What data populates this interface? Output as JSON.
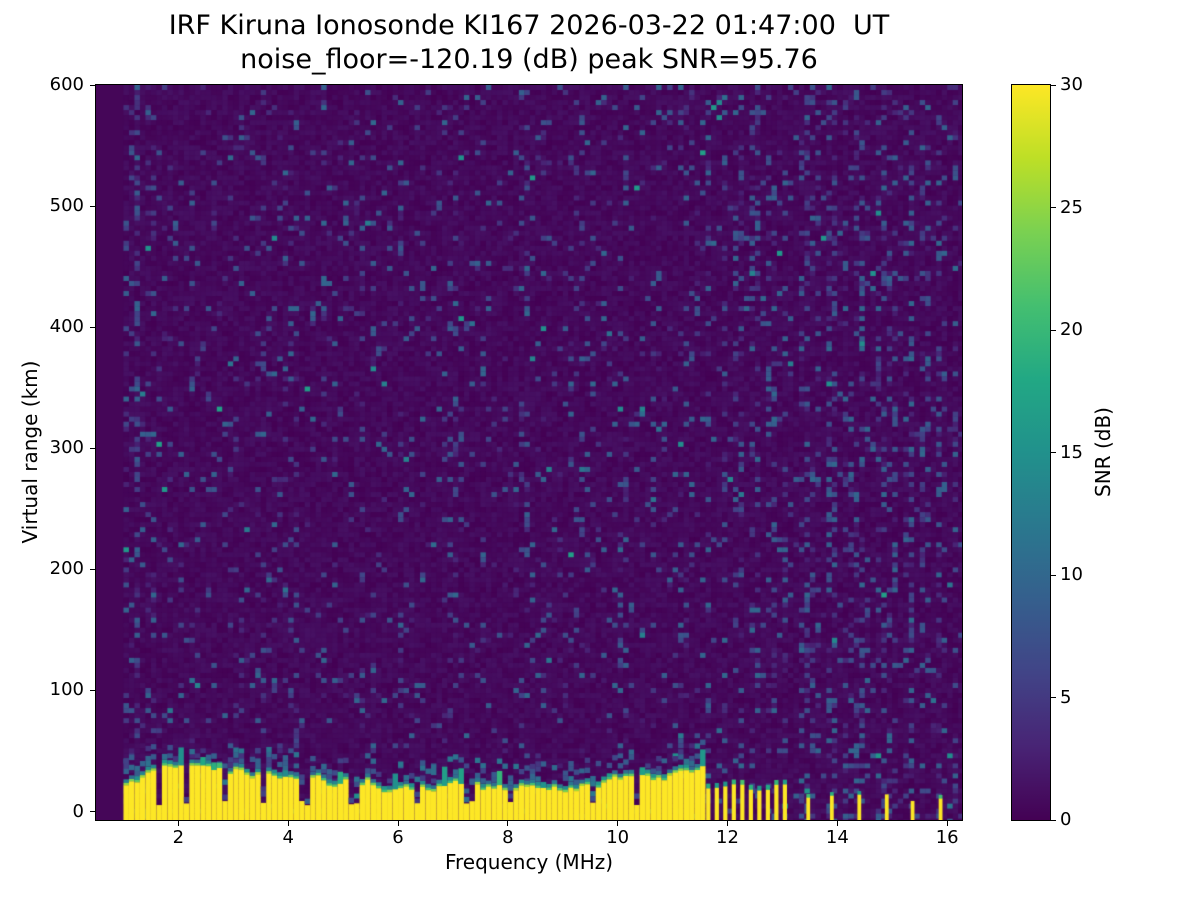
{
  "figure": {
    "title_line1": "IRF Kiruna Ionosonde KI167 2026-03-22 01:47:00  UT",
    "title_line2": "noise_floor=-120.19 (dB) peak SNR=95.76",
    "xlabel": "Frequency (MHz)",
    "ylabel": "Virtual range (km)",
    "colorbar_label": "SNR (dB)"
  },
  "chart_data": {
    "type": "heatmap",
    "title": "IRF Kiruna Ionosonde KI167 2026-03-22 01:47:00  UT",
    "subtitle": "noise_floor=-120.19 (dB) peak SNR=95.76",
    "station": "IRF Kiruna Ionosonde KI167",
    "timestamp_ut": "2026-03-22 01:47:00",
    "noise_floor_db": -120.19,
    "peak_snr_db": 95.76,
    "xlabel": "Frequency (MHz)",
    "ylabel": "Virtual range (km)",
    "xlim": [
      0.5,
      16.27
    ],
    "ylim": [
      -7,
      600
    ],
    "xticks": [
      2,
      4,
      6,
      8,
      10,
      12,
      14,
      16
    ],
    "yticks": [
      0,
      100,
      200,
      300,
      400,
      500,
      600
    ],
    "colorbar": {
      "label": "SNR (dB)",
      "min": 0,
      "max": 30,
      "ticks": [
        0,
        5,
        10,
        15,
        20,
        25,
        30
      ],
      "colormap": "viridis",
      "position": "right"
    },
    "grid": false,
    "data_extent_mhz": [
      1.0,
      16.27
    ],
    "background_snr_db": 0,
    "features": {
      "ground_echo_band": {
        "freq_range_mhz": [
          1.0,
          11.62
        ],
        "top_km_range": [
          16,
          38
        ],
        "snr_db": 30,
        "fringe_snr_db": [
          20,
          12
        ],
        "notch_freqs_mhz": [
          1.68,
          2.14,
          2.86,
          3.52,
          4.3,
          5.2,
          6.33,
          7.3,
          8.03,
          9.55,
          10.33
        ]
      },
      "interference_comb": {
        "freq_start_mhz": 11.65,
        "spacing_mhz": 0.155,
        "bar_count": 10,
        "top_km_range": [
          17,
          26
        ],
        "snr_db": 30
      },
      "isolated_bars": {
        "freqs_mhz": [
          13.47,
          13.9,
          14.4,
          14.9,
          15.37,
          15.88
        ],
        "top_km_range": [
          8,
          16
        ],
        "snr_db": 30
      },
      "weak_striation_freqs_mhz": [
        1.05,
        1.15,
        1.5,
        2.25,
        3.5,
        4.1,
        4.65,
        5.35,
        6.05,
        7.0,
        7.55,
        8.3,
        9.3,
        10.1,
        10.65,
        11.2
      ],
      "noise_speckle": {
        "probability": 0.06,
        "snr_db_range": [
          2,
          10
        ]
      }
    },
    "colormap_stops": [
      [
        0.0,
        "#440154"
      ],
      [
        0.1,
        "#482475"
      ],
      [
        0.2,
        "#414487"
      ],
      [
        0.3,
        "#355f8d"
      ],
      [
        0.4,
        "#2a788e"
      ],
      [
        0.5,
        "#21918c"
      ],
      [
        0.6,
        "#22a884"
      ],
      [
        0.7,
        "#44bf70"
      ],
      [
        0.8,
        "#7ad151"
      ],
      [
        0.9,
        "#bddf26"
      ],
      [
        1.0,
        "#fde725"
      ]
    ],
    "render_seed": 20260322
  }
}
